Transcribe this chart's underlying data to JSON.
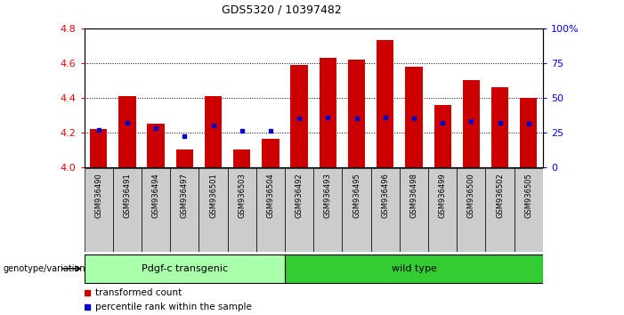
{
  "title": "GDS5320 / 10397482",
  "samples": [
    "GSM936490",
    "GSM936491",
    "GSM936494",
    "GSM936497",
    "GSM936501",
    "GSM936503",
    "GSM936504",
    "GSM936492",
    "GSM936493",
    "GSM936495",
    "GSM936496",
    "GSM936498",
    "GSM936499",
    "GSM936500",
    "GSM936502",
    "GSM936505"
  ],
  "transformed_count": [
    4.22,
    4.41,
    4.25,
    4.1,
    4.41,
    4.1,
    4.16,
    4.59,
    4.63,
    4.62,
    4.73,
    4.58,
    4.36,
    4.5,
    4.46,
    4.4
  ],
  "percentile_rank": [
    27,
    32,
    28,
    22,
    30,
    26,
    26,
    35,
    36,
    35,
    36,
    35,
    32,
    33,
    32,
    31
  ],
  "groups": [
    {
      "label": "Pdgf-c transgenic",
      "start": 0,
      "end": 7,
      "color": "#aaffaa"
    },
    {
      "label": "wild type",
      "start": 7,
      "end": 16,
      "color": "#33cc33"
    }
  ],
  "ylim_left": [
    4.0,
    4.8
  ],
  "ylim_right": [
    0,
    100
  ],
  "yticks_left": [
    4.0,
    4.2,
    4.4,
    4.6,
    4.8
  ],
  "yticks_right": [
    0,
    25,
    50,
    75,
    100
  ],
  "bar_color": "#cc0000",
  "dot_color": "#0000cc",
  "background_color": "#ffffff",
  "bar_bottom": 4.0,
  "grid_color": "#000000",
  "grid_levels": [
    4.2,
    4.4,
    4.6
  ],
  "legend_red": "transformed count",
  "legend_blue": "percentile rank within the sample",
  "genotype_label": "genotype/variation",
  "label_box_color": "#cccccc",
  "n_transgenic": 7,
  "n_total": 16
}
